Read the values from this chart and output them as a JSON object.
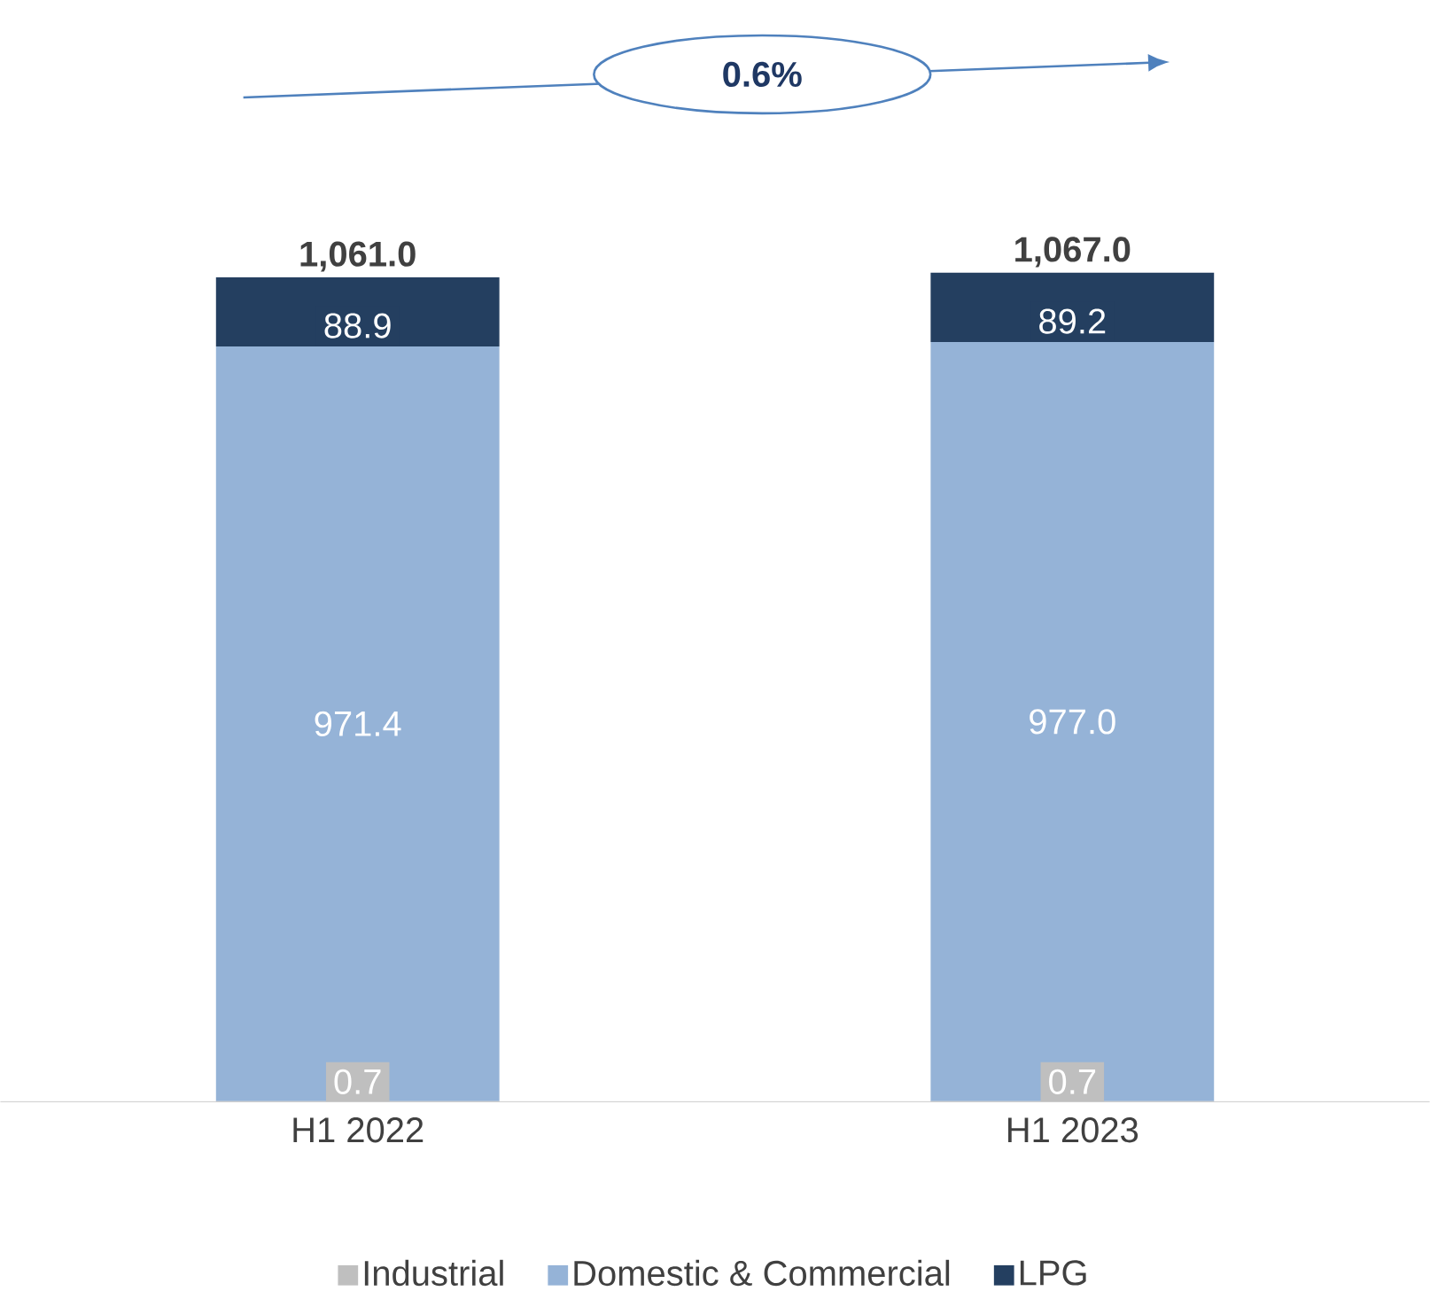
{
  "chart_data": {
    "type": "bar",
    "stacked": true,
    "categories": [
      "H1 2022",
      "H1 2023"
    ],
    "series": [
      {
        "name": "Industrial",
        "color": "#bfbfbf",
        "values": [
          0.7,
          0.7
        ],
        "value_labels": [
          "0.7",
          "0.7"
        ]
      },
      {
        "name": "Domestic & Commercial",
        "color": "#95b3d7",
        "values": [
          971.4,
          977.0
        ],
        "value_labels": [
          "971.4",
          "977.0"
        ]
      },
      {
        "name": "LPG",
        "color": "#243f60",
        "values": [
          88.9,
          89.2
        ],
        "value_labels": [
          "88.9",
          "89.2"
        ]
      }
    ],
    "totals": [
      "1,061.0",
      "1,067.0"
    ],
    "annotations": [
      "0.6%"
    ],
    "legend": "bottom"
  }
}
